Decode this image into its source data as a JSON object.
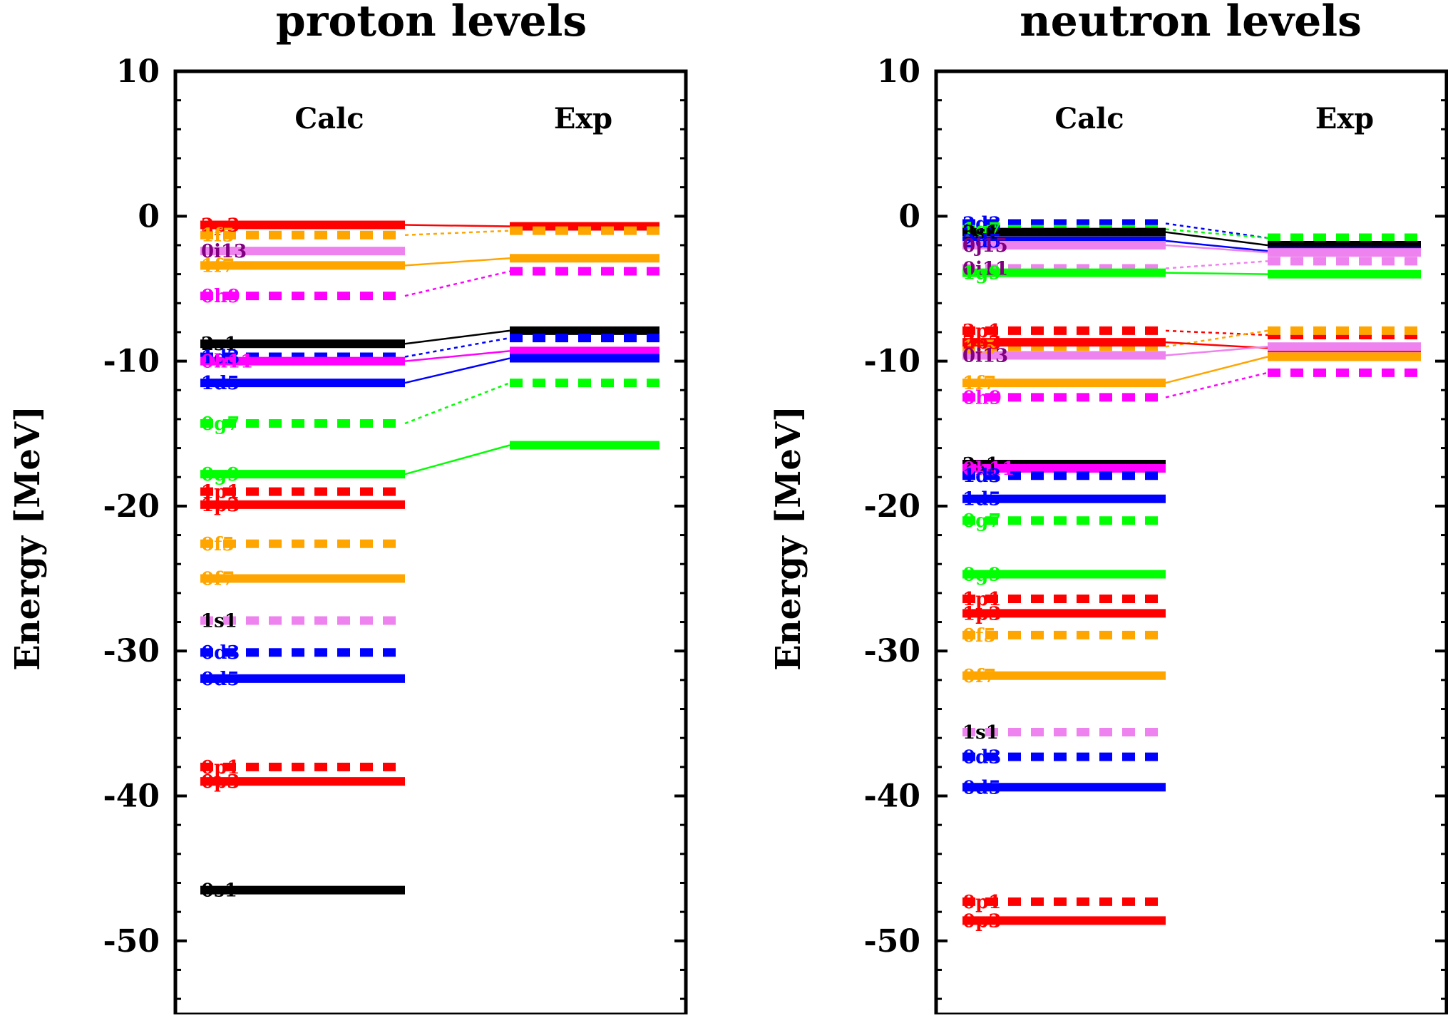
{
  "chart_data": [
    {
      "type": "level-scheme",
      "title": "proton levels",
      "ylabel": "Energy [MeV]",
      "ylim": [
        -55,
        10
      ],
      "yticks": [
        10,
        0,
        -10,
        -20,
        -30,
        -40,
        -50
      ],
      "ytick_labels": [
        "10",
        "0",
        "-10",
        "-20",
        "-30",
        "-40",
        "-50"
      ],
      "columns": [
        "Calc",
        "Exp"
      ],
      "levels": [
        {
          "label": "2p3",
          "color": "#ff0000",
          "style": "solid",
          "calc": -0.6,
          "exp": -0.7
        },
        {
          "label": "1f5",
          "color": "#ffa500",
          "style": "dashed",
          "calc": -1.3,
          "exp": -1.0
        },
        {
          "label": "0i13",
          "color": "#ee82ee",
          "style": "solid",
          "calc": -2.4,
          "exp": null,
          "label_color": "#800080"
        },
        {
          "label": "1f7",
          "color": "#ffa500",
          "style": "solid",
          "calc": -3.4,
          "exp": -2.9
        },
        {
          "label": "0h9",
          "color": "#ff00ff",
          "style": "dashed",
          "calc": -5.5,
          "exp": -3.8
        },
        {
          "label": "2s1",
          "color": "#000000",
          "style": "solid",
          "calc": -8.8,
          "exp": -7.9
        },
        {
          "label": "1d3",
          "color": "#0000ff",
          "style": "dashed",
          "calc": -9.7,
          "exp": -8.4
        },
        {
          "label": "0h11",
          "color": "#ff00ff",
          "style": "solid",
          "calc": -10.0,
          "exp": -9.3
        },
        {
          "label": "1d5",
          "color": "#0000ff",
          "style": "solid",
          "calc": -11.5,
          "exp": -9.8
        },
        {
          "label": "0g7",
          "color": "#00ff00",
          "style": "dashed",
          "calc": -14.3,
          "exp": -11.5
        },
        {
          "label": "0g9",
          "color": "#00ff00",
          "style": "solid",
          "calc": -17.8,
          "exp": -15.8
        },
        {
          "label": "1p1",
          "color": "#ff0000",
          "style": "dashed",
          "calc": -19.0,
          "exp": null
        },
        {
          "label": "1p3",
          "color": "#ff0000",
          "style": "solid",
          "calc": -19.9,
          "exp": null
        },
        {
          "label": "0f5",
          "color": "#ffa500",
          "style": "dashed",
          "calc": -22.6,
          "exp": null
        },
        {
          "label": "0f7",
          "color": "#ffa500",
          "style": "solid",
          "calc": -25.0,
          "exp": null
        },
        {
          "label": "1s1",
          "color": "#ee82ee",
          "style": "dashed",
          "calc": -27.9,
          "exp": null,
          "label_color": "#000000"
        },
        {
          "label": "0d3",
          "color": "#0000ff",
          "style": "dashed",
          "calc": -30.1,
          "exp": null
        },
        {
          "label": "0d5",
          "color": "#0000ff",
          "style": "solid",
          "calc": -31.9,
          "exp": null
        },
        {
          "label": "0p1",
          "color": "#ff0000",
          "style": "dashed",
          "calc": -38.0,
          "exp": null
        },
        {
          "label": "0p3",
          "color": "#ff0000",
          "style": "solid",
          "calc": -39.0,
          "exp": null
        },
        {
          "label": "0s1",
          "color": "#000000",
          "style": "solid",
          "calc": -46.5,
          "exp": null
        }
      ]
    },
    {
      "type": "level-scheme",
      "title": "neutron levels",
      "ylabel": "Energy [MeV]",
      "ylim": [
        -55,
        10
      ],
      "yticks": [
        10,
        0,
        -10,
        -20,
        -30,
        -40,
        -50
      ],
      "ytick_labels": [
        "10",
        "0",
        "-10",
        "-20",
        "-30",
        "-40",
        "-50"
      ],
      "columns": [
        "Calc",
        "Exp"
      ],
      "levels": [
        {
          "label": "2d3",
          "color": "#0000ff",
          "style": "dashed",
          "calc": -0.5,
          "exp": -1.5
        },
        {
          "label": "1g7",
          "color": "#00ff00",
          "style": "dashed",
          "calc": -0.9,
          "exp": -1.5
        },
        {
          "label": "3s1",
          "color": "#000000",
          "style": "solid",
          "calc": -1.1,
          "exp": -2.0
        },
        {
          "label": "2d5",
          "color": "#0000ff",
          "style": "solid",
          "calc": -1.7,
          "exp": -2.4
        },
        {
          "label": "0j15",
          "color": "#ee82ee",
          "style": "solid",
          "calc": -2.0,
          "exp": -2.5,
          "label_color": "#800080"
        },
        {
          "label": "0i11",
          "color": "#ee82ee",
          "style": "dashed",
          "calc": -3.6,
          "exp": -3.1,
          "label_color": "#800080"
        },
        {
          "label": "1g9",
          "color": "#00ff00",
          "style": "solid",
          "calc": -3.9,
          "exp": -4.0
        },
        {
          "label": "2p1",
          "color": "#ff0000",
          "style": "dashed",
          "calc": -7.9,
          "exp": -8.2
        },
        {
          "label": "1f5",
          "color": "#ffa500",
          "style": "dashed",
          "calc": -9.0,
          "exp": -7.9
        },
        {
          "label": "2p3",
          "color": "#ff0000",
          "style": "solid",
          "calc": -8.7,
          "exp": -9.1
        },
        {
          "label": "0i13",
          "color": "#ee82ee",
          "style": "solid",
          "calc": -9.6,
          "exp": -9.0,
          "label_color": "#800080"
        },
        {
          "label": "1f7",
          "color": "#ffa500",
          "style": "solid",
          "calc": -11.5,
          "exp": -9.7
        },
        {
          "label": "0h9",
          "color": "#ff00ff",
          "style": "dashed",
          "calc": -12.5,
          "exp": -10.8
        },
        {
          "label": "2s1",
          "color": "#000000",
          "style": "solid",
          "calc": -17.1,
          "exp": null
        },
        {
          "label": "0h11",
          "color": "#ff00ff",
          "style": "solid",
          "calc": -17.4,
          "exp": null
        },
        {
          "label": "1d3",
          "color": "#0000ff",
          "style": "dashed",
          "calc": -17.9,
          "exp": null
        },
        {
          "label": "1d5",
          "color": "#0000ff",
          "style": "solid",
          "calc": -19.5,
          "exp": null
        },
        {
          "label": "0g7",
          "color": "#00ff00",
          "style": "dashed",
          "calc": -21.0,
          "exp": null
        },
        {
          "label": "0g9",
          "color": "#00ff00",
          "style": "solid",
          "calc": -24.7,
          "exp": null
        },
        {
          "label": "1p1",
          "color": "#ff0000",
          "style": "dashed",
          "calc": -26.4,
          "exp": null
        },
        {
          "label": "1p3",
          "color": "#ff0000",
          "style": "solid",
          "calc": -27.4,
          "exp": null
        },
        {
          "label": "0f5",
          "color": "#ffa500",
          "style": "dashed",
          "calc": -28.9,
          "exp": null
        },
        {
          "label": "0f7",
          "color": "#ffa500",
          "style": "solid",
          "calc": -31.7,
          "exp": null
        },
        {
          "label": "1s1",
          "color": "#ee82ee",
          "style": "dashed",
          "calc": -35.6,
          "exp": null,
          "label_color": "#000000"
        },
        {
          "label": "0d3",
          "color": "#0000ff",
          "style": "dashed",
          "calc": -37.3,
          "exp": null
        },
        {
          "label": "0d5",
          "color": "#0000ff",
          "style": "solid",
          "calc": -39.4,
          "exp": null
        },
        {
          "label": "0p1",
          "color": "#ff0000",
          "style": "dashed",
          "calc": -47.3,
          "exp": null
        },
        {
          "label": "0p3",
          "color": "#ff0000",
          "style": "solid",
          "calc": -48.6,
          "exp": null
        }
      ]
    }
  ]
}
